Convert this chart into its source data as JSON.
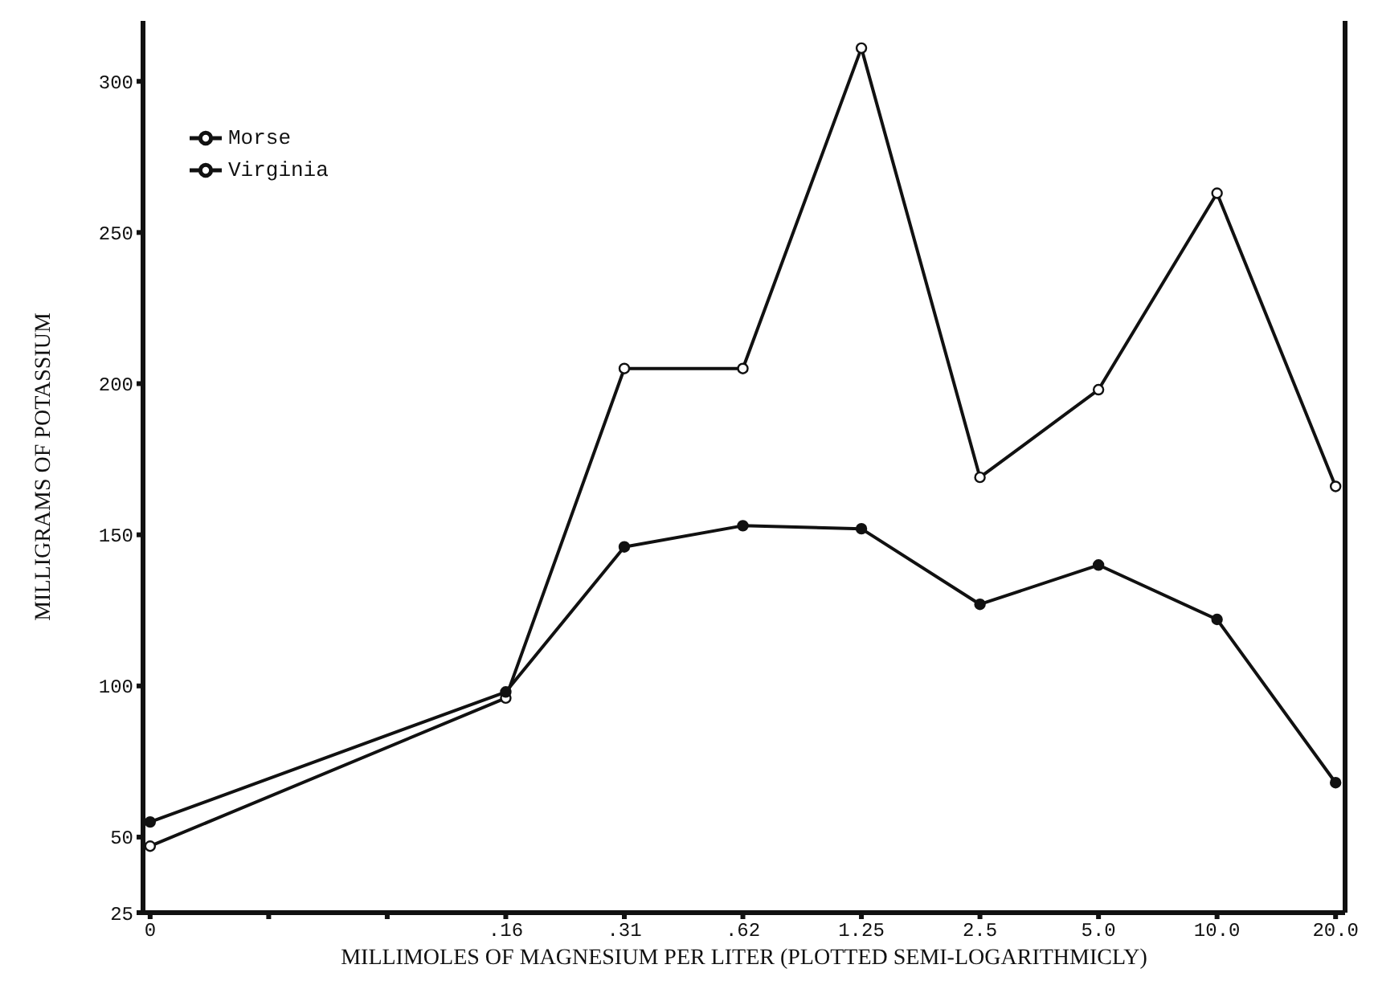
{
  "chart_data": {
    "type": "line",
    "xlabel": "MILLIMOLES OF MAGNESIUM PER LITER (PLOTTED SEMI-LOGARITHMICLY)",
    "ylabel": "MILLIGRAMS OF POTASSIUM",
    "categories": [
      "0",
      null,
      null,
      ".16",
      ".31",
      ".62",
      "1.25",
      "2.5",
      "5.0",
      "10.0",
      "20.0"
    ],
    "series": [
      {
        "name": "Morse",
        "color": "#111111",
        "values": [
          47,
          null,
          null,
          96,
          205,
          205,
          311,
          169,
          198,
          263,
          166
        ]
      },
      {
        "name": "Virginia",
        "color": "#111111",
        "values": [
          55,
          null,
          null,
          98,
          146,
          153,
          152,
          127,
          140,
          122,
          68
        ]
      }
    ],
    "ylim": [
      25,
      320
    ],
    "yticks": [
      25,
      50,
      100,
      150,
      200,
      250,
      300
    ],
    "grid": false,
    "legend": "top left",
    "marker": "circle",
    "line_style": "solid"
  }
}
